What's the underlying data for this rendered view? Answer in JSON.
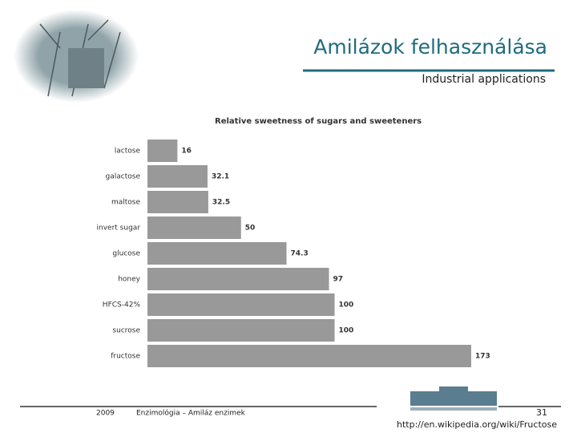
{
  "slide": {
    "title": "Amilázok felhasználása",
    "subtitle": "Industrial applications",
    "footer_year": "2009",
    "footer_text": "Enzimológia – Amiláz enzimek",
    "page_number": "31",
    "url": "http://en.wikipedia.org/wiki/Fructose"
  },
  "chart_data": {
    "type": "bar",
    "orientation": "horizontal",
    "title": "Relative sweetness of sugars and sweeteners",
    "categories": [
      "lactose",
      "galactose",
      "maltose",
      "invert sugar",
      "glucose",
      "honey",
      "HFCS-42%",
      "sucrose",
      "fructose"
    ],
    "values": [
      16,
      32.1,
      32.5,
      50,
      74.3,
      97,
      100,
      100,
      173
    ],
    "color": "#999999"
  }
}
